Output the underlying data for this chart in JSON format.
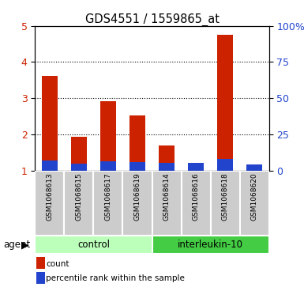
{
  "title": "GDS4551 / 1559865_at",
  "samples": [
    "GSM1068613",
    "GSM1068615",
    "GSM1068617",
    "GSM1068619",
    "GSM1068614",
    "GSM1068616",
    "GSM1068618",
    "GSM1068620"
  ],
  "count_values": [
    3.62,
    1.93,
    2.91,
    2.52,
    1.7,
    1.1,
    4.76,
    1.05
  ],
  "percentile_values": [
    7.0,
    5.0,
    6.5,
    6.0,
    5.5,
    5.5,
    8.0,
    4.5
  ],
  "red_color": "#cc2200",
  "blue_color": "#2244cc",
  "ylim_left": [
    1,
    5
  ],
  "ylim_right": [
    0,
    100
  ],
  "yticks_left": [
    1,
    2,
    3,
    4,
    5
  ],
  "yticks_right": [
    0,
    25,
    50,
    75,
    100
  ],
  "ytick_labels_right": [
    "0",
    "25",
    "50",
    "75",
    "100%"
  ],
  "groups": [
    {
      "label": "control",
      "color": "#bbffbb",
      "start": 0,
      "end": 4
    },
    {
      "label": "interleukin-10",
      "color": "#44cc44",
      "start": 4,
      "end": 8
    }
  ],
  "agent_label": "agent",
  "legend_items": [
    {
      "color": "#cc2200",
      "label": "count"
    },
    {
      "color": "#2244cc",
      "label": "percentile rank within the sample"
    }
  ],
  "cell_color": "#cccccc",
  "plot_bg_color": "#ffffff",
  "bar_width": 0.55
}
